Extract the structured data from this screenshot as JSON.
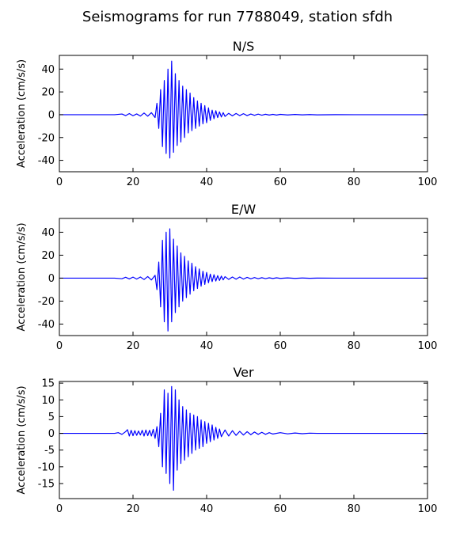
{
  "figure": {
    "title": "Seismograms for run 7788049, station sfdh"
  },
  "chart_data": [
    {
      "type": "line",
      "title": "N/S",
      "xlabel": "",
      "ylabel": "Acceleration (cm/s/s)",
      "xlim": [
        0,
        100
      ],
      "ylim": [
        -50,
        52
      ],
      "xticks": [
        0,
        20,
        40,
        60,
        80,
        100
      ],
      "yticks": [
        -40,
        -20,
        0,
        20,
        40
      ],
      "grid": false,
      "color": "#0000ff",
      "series": [
        {
          "x": [
            0,
            15,
            17,
            18,
            19,
            20,
            21,
            22,
            23,
            24,
            25,
            26,
            26.5,
            27,
            27.5,
            28,
            28.5,
            29,
            29.5,
            30,
            30.5,
            31,
            31.5,
            32,
            32.5,
            33,
            33.5,
            34,
            34.5,
            35,
            35.5,
            36,
            36.5,
            37,
            37.5,
            38,
            38.5,
            39,
            39.5,
            40,
            40.5,
            41,
            41.5,
            42,
            42.5,
            43,
            43.5,
            44,
            44.5,
            45,
            46,
            47,
            48,
            49,
            50,
            51,
            52,
            53,
            54,
            55,
            56,
            57,
            58,
            59,
            60,
            62,
            64,
            66,
            68,
            70,
            75,
            80,
            90,
            100
          ],
          "y": [
            0,
            0,
            0.6,
            -0.8,
            1.0,
            -0.9,
            0.7,
            -1.2,
            1.5,
            -1.3,
            1.8,
            -2.5,
            10,
            -12,
            22,
            -28,
            30,
            -34,
            40,
            -38,
            47,
            -33,
            36,
            -27,
            30,
            -24,
            25,
            -20,
            22,
            -16,
            19,
            -14,
            15,
            -12,
            12,
            -10,
            10,
            -8,
            8,
            -7,
            6,
            -5,
            4,
            -3.5,
            3.5,
            -2.5,
            2.5,
            -2,
            1.8,
            -1.5,
            1.2,
            -1.0,
            1.1,
            -0.8,
            0.9,
            -0.8,
            0.6,
            -0.5,
            0.5,
            -0.4,
            0.4,
            -0.3,
            0.3,
            -0.3,
            0.3,
            -0.2,
            0.2,
            -0.15,
            0.15,
            -0.1,
            0.05,
            0,
            0,
            0
          ]
        }
      ]
    },
    {
      "type": "line",
      "title": "E/W",
      "xlabel": "",
      "ylabel": "Acceleration (cm/s/s)",
      "xlim": [
        0,
        100
      ],
      "ylim": [
        -50,
        52
      ],
      "xticks": [
        0,
        20,
        40,
        60,
        80,
        100
      ],
      "yticks": [
        -40,
        -20,
        0,
        20,
        40
      ],
      "grid": false,
      "color": "#0000ff",
      "series": [
        {
          "x": [
            0,
            15,
            17,
            18,
            19,
            20,
            21,
            22,
            23,
            24,
            25,
            26,
            26.5,
            27,
            27.5,
            28,
            28.5,
            29,
            29.5,
            30,
            30.5,
            31,
            31.5,
            32,
            32.5,
            33,
            33.5,
            34,
            34.5,
            35,
            35.5,
            36,
            36.5,
            37,
            37.5,
            38,
            38.5,
            39,
            39.5,
            40,
            40.5,
            41,
            41.5,
            42,
            42.5,
            43,
            43.5,
            44,
            44.5,
            45,
            46,
            47,
            48,
            49,
            50,
            51,
            52,
            53,
            54,
            55,
            56,
            57,
            58,
            59,
            60,
            62,
            64,
            66,
            68,
            70,
            75,
            80,
            90,
            100
          ],
          "y": [
            0,
            0,
            -0.5,
            0.8,
            -0.7,
            0.9,
            -0.8,
            1.0,
            -1.2,
            1.4,
            -1.6,
            2.5,
            -10,
            14,
            -25,
            33,
            -38,
            40,
            -46,
            43,
            -38,
            34,
            -30,
            28,
            -25,
            22,
            -20,
            19,
            -17,
            15,
            -14,
            13,
            -11,
            10,
            -9,
            8,
            -7,
            6,
            -5.5,
            5,
            -4,
            3.5,
            -3,
            3,
            -2.5,
            2.2,
            -2,
            1.8,
            -1.5,
            1.3,
            -1.1,
            1.0,
            -0.9,
            1.0,
            -0.8,
            0.7,
            -0.6,
            0.5,
            -0.5,
            0.4,
            -0.4,
            0.3,
            -0.3,
            0.3,
            -0.2,
            0.2,
            -0.2,
            0.15,
            -0.1,
            0.05,
            0,
            0,
            0,
            0
          ]
        }
      ]
    },
    {
      "type": "line",
      "title": "Ver",
      "xlabel": "",
      "ylabel": "Acceleration (cm/s/s)",
      "xlim": [
        0,
        100
      ],
      "ylim": [
        -19.5,
        15.5
      ],
      "xticks": [
        0,
        20,
        40,
        60,
        80,
        100
      ],
      "yticks": [
        -15,
        -10,
        -5,
        0,
        5,
        10,
        15
      ],
      "grid": false,
      "color": "#0000ff",
      "series": [
        {
          "x": [
            0,
            15,
            16,
            17,
            18,
            18.5,
            19,
            19.5,
            20,
            20.5,
            21,
            21.5,
            22,
            22.5,
            23,
            23.5,
            24,
            24.5,
            25,
            25.5,
            26,
            26.5,
            27,
            27.5,
            28,
            28.5,
            29,
            29.5,
            30,
            30.5,
            31,
            31.5,
            32,
            32.5,
            33,
            33.5,
            34,
            34.5,
            35,
            35.5,
            36,
            36.5,
            37,
            37.5,
            38,
            38.5,
            39,
            39.5,
            40,
            40.5,
            41,
            41.5,
            42,
            42.5,
            43,
            43.5,
            44,
            45,
            46,
            47,
            48,
            49,
            50,
            51,
            52,
            53,
            54,
            55,
            56,
            57,
            58,
            60,
            62,
            64,
            66,
            68,
            70,
            75,
            80,
            90,
            100
          ],
          "y": [
            0,
            0,
            0.2,
            -0.3,
            0.5,
            1.1,
            -0.8,
            0.9,
            -0.7,
            0.8,
            -0.6,
            0.7,
            -0.5,
            0.9,
            -0.8,
            1.0,
            -0.7,
            0.9,
            -0.8,
            1.2,
            -1.5,
            2.0,
            -4,
            6,
            -10,
            13,
            -12,
            12,
            -15,
            14,
            -17,
            13,
            -11,
            10,
            -9,
            8,
            -8,
            7,
            -7,
            6,
            -6,
            5.5,
            -5,
            5,
            -4.5,
            4,
            -4,
            3.5,
            -3,
            3,
            -2.5,
            2.5,
            -2,
            1.8,
            -1.5,
            1.3,
            -1.0,
            1.0,
            -0.8,
            0.8,
            -0.6,
            0.6,
            -0.5,
            0.5,
            -0.4,
            0.4,
            -0.3,
            0.3,
            -0.3,
            0.2,
            -0.2,
            0.2,
            -0.15,
            0.1,
            -0.1,
            0.05,
            0,
            0,
            0,
            0,
            0
          ]
        }
      ]
    }
  ]
}
